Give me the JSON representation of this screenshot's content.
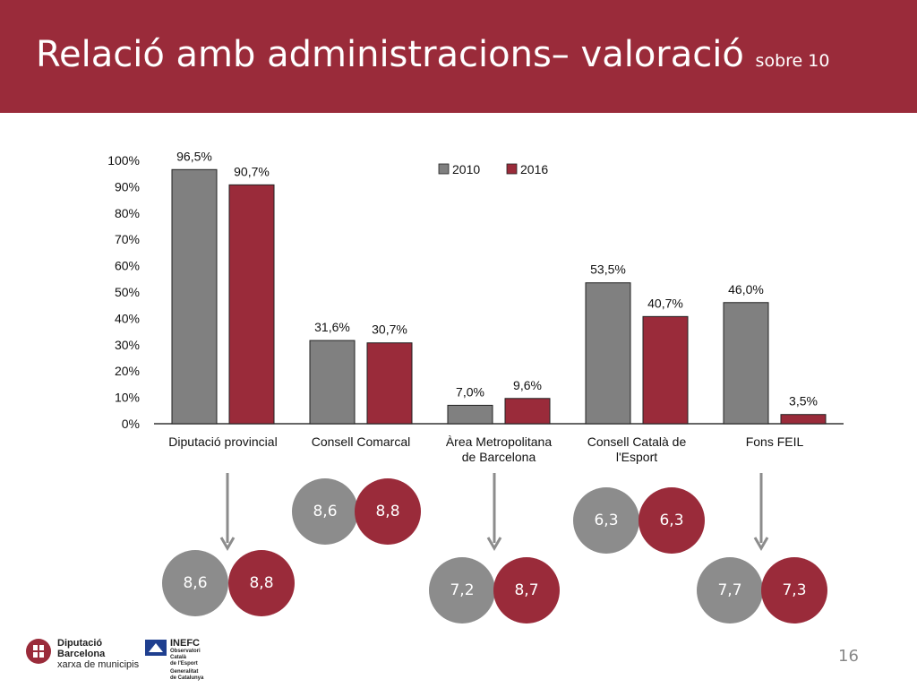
{
  "header": {
    "title": "Relació amb administracions– valoració",
    "subtitle": "sobre 10",
    "color": "#9a2b3a"
  },
  "chart_data": {
    "type": "bar",
    "title": "",
    "xlabel": "",
    "ylabel": "",
    "ylim": [
      0,
      100
    ],
    "yticks": [
      "0%",
      "10%",
      "20%",
      "30%",
      "40%",
      "50%",
      "60%",
      "70%",
      "80%",
      "90%",
      "100%"
    ],
    "categories": [
      [
        "Diputació provincial"
      ],
      [
        "Consell Comarcal"
      ],
      [
        "Àrea Metropolitana",
        "de Barcelona"
      ],
      [
        "Consell Català de",
        "l'Esport"
      ],
      [
        "Fons FEIL"
      ]
    ],
    "series": [
      {
        "name": "2010",
        "color": "#808080",
        "values": [
          96.5,
          31.6,
          7.0,
          53.5,
          46.0
        ],
        "labels": [
          "96,5%",
          "31,6%",
          "7,0%",
          "53,5%",
          "46,0%"
        ]
      },
      {
        "name": "2016",
        "color": "#9a2b3a",
        "values": [
          90.7,
          30.7,
          9.6,
          40.7,
          3.5
        ],
        "labels": [
          "90,7%",
          "30,7%",
          "9,6%",
          "40,7%",
          "3,5%"
        ]
      }
    ],
    "legend": "top-right",
    "grid": false
  },
  "ratings": [
    {
      "a": "8,6",
      "b": "8,8"
    },
    {
      "a": "8,6",
      "b": "8,8"
    },
    {
      "a": "7,2",
      "b": "8,7"
    },
    {
      "a": "6,3",
      "b": "6,3"
    },
    {
      "a": "7,7",
      "b": "7,3"
    }
  ],
  "footer": {
    "page_number": "16",
    "diba_logo": {
      "line1": "Diputació",
      "line2": "Barcelona",
      "line3": "xarxa de municipis"
    },
    "inefc_logo": {
      "line1": "INEFC",
      "line2": "Observatori",
      "line3": "Català",
      "line4": "de l'Esport",
      "line5": "Generalitat",
      "line6": "de Catalunya"
    }
  }
}
